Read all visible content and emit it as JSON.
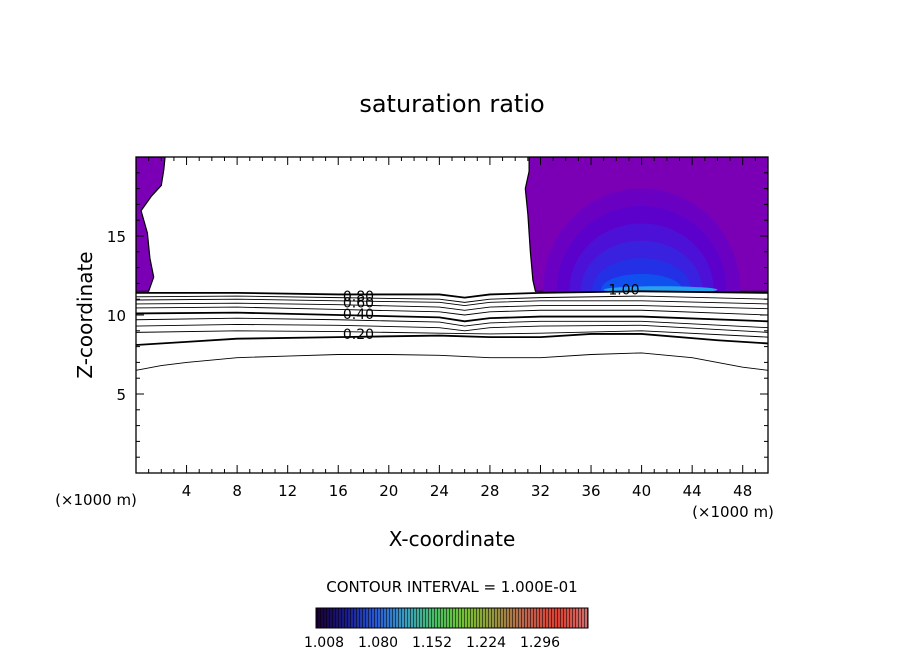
{
  "chart_data": {
    "type": "contour",
    "title": "saturation ratio",
    "xlabel": "X-coordinate",
    "ylabel": "Z-coordinate",
    "x_unit_left": "(×1000 m)",
    "x_unit_right": "(×1000 m)",
    "xlim": [
      0,
      50
    ],
    "ylim": [
      0,
      20
    ],
    "x_ticks": [
      "4",
      "8",
      "12",
      "16",
      "20",
      "24",
      "28",
      "32",
      "36",
      "40",
      "44",
      "48"
    ],
    "x_tick_values": [
      4,
      8,
      12,
      16,
      20,
      24,
      28,
      32,
      36,
      40,
      44,
      48
    ],
    "y_ticks": [
      "5",
      "10",
      "15"
    ],
    "y_tick_values": [
      5,
      10,
      15
    ],
    "contour_interval_text": "CONTOUR INTERVAL = 1.000E-01",
    "contour_labels": [
      {
        "text": "0.80",
        "x": 17.6,
        "z": 11.2
      },
      {
        "text": "0.60",
        "x": 17.6,
        "z": 10.8
      },
      {
        "text": "0.40",
        "x": 17.6,
        "z": 10.05
      },
      {
        "text": "0.20",
        "x": 17.6,
        "z": 8.8
      },
      {
        "text": "1.00",
        "x": 38.6,
        "z": 11.6
      }
    ],
    "contour_lines": [
      {
        "level": 1.0,
        "bold": true,
        "points": [
          [
            0,
            11.4
          ],
          [
            8,
            11.4
          ],
          [
            16,
            11.3
          ],
          [
            24,
            11.3
          ],
          [
            26,
            11.1
          ],
          [
            28,
            11.3
          ],
          [
            32,
            11.4
          ],
          [
            40,
            11.5
          ],
          [
            50,
            11.4
          ]
        ]
      },
      {
        "level": 0.9,
        "bold": false,
        "points": [
          [
            0,
            11.15
          ],
          [
            8,
            11.2
          ],
          [
            16,
            11.1
          ],
          [
            24,
            11.0
          ],
          [
            26,
            10.8
          ],
          [
            28,
            11.0
          ],
          [
            32,
            11.1
          ],
          [
            40,
            11.2
          ],
          [
            50,
            11.0
          ]
        ]
      },
      {
        "level": 0.8,
        "bold": false,
        "points": [
          [
            0,
            10.95
          ],
          [
            8,
            11.0
          ],
          [
            16,
            10.9
          ],
          [
            24,
            10.8
          ],
          [
            26,
            10.6
          ],
          [
            28,
            10.8
          ],
          [
            32,
            10.9
          ],
          [
            40,
            10.9
          ],
          [
            50,
            10.7
          ]
        ]
      },
      {
        "level": 0.7,
        "bold": false,
        "points": [
          [
            0,
            10.7
          ],
          [
            8,
            10.75
          ],
          [
            16,
            10.65
          ],
          [
            24,
            10.5
          ],
          [
            26,
            10.3
          ],
          [
            28,
            10.5
          ],
          [
            32,
            10.6
          ],
          [
            40,
            10.6
          ],
          [
            50,
            10.4
          ]
        ]
      },
      {
        "level": 0.6,
        "bold": false,
        "points": [
          [
            0,
            10.45
          ],
          [
            8,
            10.5
          ],
          [
            16,
            10.35
          ],
          [
            24,
            10.2
          ],
          [
            26,
            10.0
          ],
          [
            28,
            10.2
          ],
          [
            32,
            10.3
          ],
          [
            40,
            10.3
          ],
          [
            50,
            10.0
          ]
        ]
      },
      {
        "level": 0.5,
        "bold": true,
        "points": [
          [
            0,
            10.1
          ],
          [
            8,
            10.15
          ],
          [
            16,
            10.0
          ],
          [
            24,
            9.85
          ],
          [
            26,
            9.6
          ],
          [
            28,
            9.8
          ],
          [
            32,
            9.9
          ],
          [
            40,
            9.9
          ],
          [
            50,
            9.6
          ]
        ]
      },
      {
        "level": 0.4,
        "bold": false,
        "points": [
          [
            0,
            9.7
          ],
          [
            8,
            9.8
          ],
          [
            16,
            9.7
          ],
          [
            24,
            9.55
          ],
          [
            26,
            9.3
          ],
          [
            28,
            9.5
          ],
          [
            32,
            9.6
          ],
          [
            40,
            9.6
          ],
          [
            50,
            9.2
          ]
        ]
      },
      {
        "level": 0.3,
        "bold": false,
        "points": [
          [
            0,
            9.3
          ],
          [
            8,
            9.4
          ],
          [
            16,
            9.35
          ],
          [
            24,
            9.2
          ],
          [
            26,
            9.0
          ],
          [
            28,
            9.2
          ],
          [
            32,
            9.3
          ],
          [
            40,
            9.35
          ],
          [
            50,
            8.9
          ]
        ]
      },
      {
        "level": 0.2,
        "bold": false,
        "points": [
          [
            0,
            8.9
          ],
          [
            8,
            9.0
          ],
          [
            16,
            8.95
          ],
          [
            24,
            8.85
          ],
          [
            28,
            8.8
          ],
          [
            32,
            8.85
          ],
          [
            40,
            9.0
          ],
          [
            50,
            8.6
          ]
        ]
      },
      {
        "level": 0.1,
        "bold": true,
        "points": [
          [
            0,
            8.1
          ],
          [
            4,
            8.3
          ],
          [
            8,
            8.5
          ],
          [
            16,
            8.6
          ],
          [
            24,
            8.7
          ],
          [
            28,
            8.6
          ],
          [
            32,
            8.6
          ],
          [
            36,
            8.8
          ],
          [
            40,
            8.8
          ],
          [
            46,
            8.4
          ],
          [
            50,
            8.2
          ]
        ]
      },
      {
        "level": 0.0,
        "bold": false,
        "points": [
          [
            0,
            6.5
          ],
          [
            2,
            6.8
          ],
          [
            4,
            7.0
          ],
          [
            8,
            7.3
          ],
          [
            12,
            7.4
          ],
          [
            16,
            7.5
          ],
          [
            20,
            7.5
          ],
          [
            24,
            7.45
          ],
          [
            28,
            7.3
          ],
          [
            32,
            7.3
          ],
          [
            36,
            7.5
          ],
          [
            40,
            7.6
          ],
          [
            44,
            7.3
          ],
          [
            48,
            6.7
          ],
          [
            50,
            6.5
          ]
        ]
      }
    ],
    "filled_regions": [
      {
        "name": "left-supersaturated",
        "color": "#7b00b5",
        "points": [
          [
            0,
            20
          ],
          [
            2.3,
            20
          ],
          [
            2.2,
            19.2
          ],
          [
            2.0,
            18.2
          ],
          [
            1.2,
            17.5
          ],
          [
            0.4,
            16.6
          ],
          [
            0.9,
            15.2
          ],
          [
            1.1,
            13.6
          ],
          [
            1.4,
            12.4
          ],
          [
            1.0,
            11.5
          ],
          [
            0,
            11.5
          ]
        ]
      },
      {
        "name": "right-supersaturated",
        "color": "#7b00b5",
        "points": [
          [
            31.1,
            20
          ],
          [
            50,
            20
          ],
          [
            50,
            11.5
          ],
          [
            31.6,
            11.5
          ],
          [
            31.4,
            12.2
          ],
          [
            31.2,
            14.0
          ],
          [
            31.0,
            16.4
          ],
          [
            30.8,
            18.0
          ],
          [
            31.1,
            19.1
          ]
        ]
      }
    ],
    "shading_levels": [
      {
        "color": "#6a00c2",
        "cx": 40,
        "cz": 11.6,
        "rx": 7.8,
        "rz": 6.4
      },
      {
        "color": "#5c00cc",
        "cx": 40,
        "cz": 11.6,
        "rx": 6.7,
        "rz": 5.3
      },
      {
        "color": "#4d10d6",
        "cx": 40,
        "cz": 11.6,
        "rx": 5.7,
        "rz": 4.2
      },
      {
        "color": "#3a20df",
        "cx": 40,
        "cz": 11.6,
        "rx": 4.8,
        "rz": 3.1
      },
      {
        "color": "#2430e6",
        "cx": 40,
        "cz": 11.6,
        "rx": 3.9,
        "rz": 2.0
      },
      {
        "color": "#1050ee",
        "cx": 40,
        "cz": 11.6,
        "rx": 3.2,
        "rz": 1.0
      },
      {
        "color": "#28a0f0",
        "cx": 41.5,
        "cz": 11.6,
        "rx": 4.5,
        "rz": 0.22
      }
    ],
    "colorbar": {
      "min_color": "#1a0030",
      "colors": [
        "#1a0030",
        "#1a1a8a",
        "#2a5ad6",
        "#3aa0c0",
        "#4ac060",
        "#7ac030",
        "#9a9040",
        "#c06050",
        "#e04030",
        "#d07070"
      ],
      "tick_labels": [
        "1.008",
        "1.080",
        "1.152",
        "1.224",
        "1.296"
      ]
    }
  }
}
